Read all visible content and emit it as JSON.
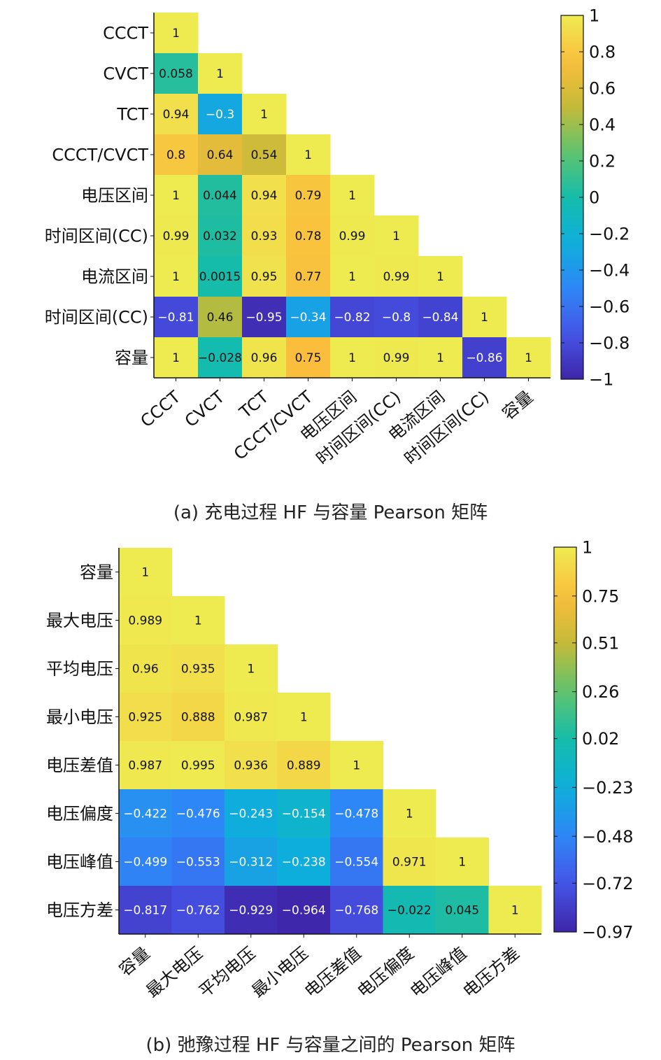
{
  "chart_data": [
    {
      "type": "heatmap",
      "subtype": "lower-triangular correlation matrix",
      "caption": "(a) 充电过程 HF 与容量 Pearson 矩阵",
      "labels": [
        "CCCT",
        "CVCT",
        "TCT",
        "CCCT/CVCT",
        "电压区间",
        "时间区间(CC)",
        "电流区间",
        "时间区间(CC)",
        "容量"
      ],
      "values": [
        [
          "1"
        ],
        [
          "0.058",
          "1"
        ],
        [
          "0.94",
          "−0.3",
          "1"
        ],
        [
          "0.8",
          "0.64",
          "0.54",
          "1"
        ],
        [
          "1",
          "0.044",
          "0.94",
          "0.79",
          "1"
        ],
        [
          "0.99",
          "0.032",
          "0.93",
          "0.78",
          "0.99",
          "1"
        ],
        [
          "1",
          "0.0015",
          "0.95",
          "0.77",
          "1",
          "0.99",
          "1"
        ],
        [
          "−0.81",
          "0.46",
          "−0.95",
          "−0.34",
          "−0.82",
          "−0.8",
          "−0.84",
          "1"
        ],
        [
          "1",
          "−0.028",
          "0.96",
          "0.75",
          "1",
          "0.99",
          "1",
          "−0.86",
          "1"
        ]
      ],
      "colorbar": {
        "range": [
          -1,
          1
        ],
        "ticks": [
          "1",
          "0.8",
          "0.6",
          "0.4",
          "0.2",
          "0",
          "−0.2",
          "−0.4",
          "−0.6",
          "−0.8",
          "−1"
        ],
        "colormap": "parula"
      }
    },
    {
      "type": "heatmap",
      "subtype": "lower-triangular correlation matrix",
      "caption": "(b) 弛豫过程 HF 与容量之间的 Pearson 矩阵",
      "labels": [
        "容量",
        "最大电压",
        "平均电压",
        "最小电压",
        "电压差值",
        "电压偏度",
        "电压峰值",
        "电压方差"
      ],
      "values": [
        [
          "1"
        ],
        [
          "0.989",
          "1"
        ],
        [
          "0.96",
          "0.935",
          "1"
        ],
        [
          "0.925",
          "0.888",
          "0.987",
          "1"
        ],
        [
          "0.987",
          "0.995",
          "0.936",
          "0.889",
          "1"
        ],
        [
          "−0.422",
          "−0.476",
          "−0.243",
          "−0.154",
          "−0.478",
          "1"
        ],
        [
          "−0.499",
          "−0.553",
          "−0.312",
          "−0.238",
          "−0.554",
          "0.971",
          "1"
        ],
        [
          "−0.817",
          "−0.762",
          "−0.929",
          "−0.964",
          "−0.768",
          "−0.022",
          "0.045",
          "1"
        ]
      ],
      "colorbar": {
        "range": [
          -0.97,
          1
        ],
        "ticks": [
          "1",
          "0.75",
          "0.51",
          "0.26",
          "0.02",
          "−0.23",
          "−0.48",
          "−0.72",
          "−0.97"
        ],
        "colormap": "parula"
      }
    }
  ]
}
